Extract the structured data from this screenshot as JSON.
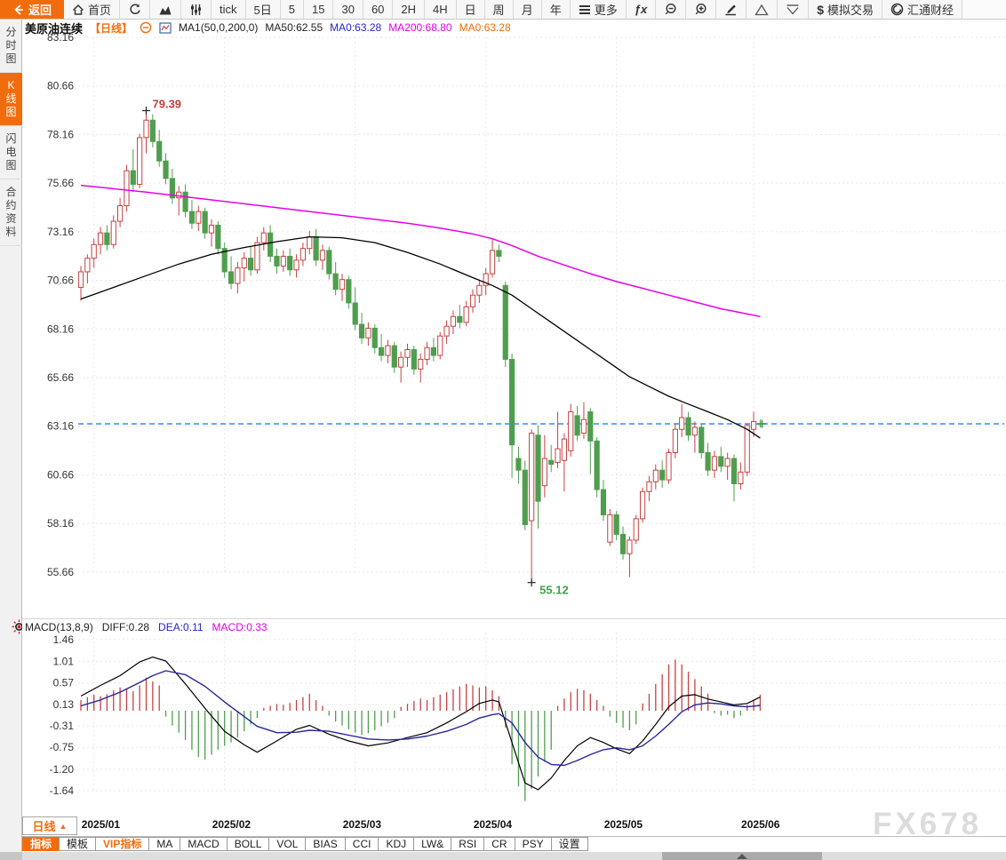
{
  "topbar": {
    "items": [
      {
        "id": "back",
        "label": "返回",
        "icon": "back",
        "primary": true
      },
      {
        "id": "home",
        "label": "首页",
        "icon": "home"
      },
      {
        "id": "refresh",
        "label": "",
        "icon": "refresh"
      },
      {
        "id": "area-chart",
        "label": "",
        "icon": "area-chart"
      },
      {
        "id": "candle-settings",
        "label": "",
        "icon": "sliders"
      },
      {
        "id": "tick",
        "label": "tick"
      },
      {
        "id": "5d",
        "label": "5日"
      },
      {
        "id": "min5",
        "label": "5"
      },
      {
        "id": "min15",
        "label": "15"
      },
      {
        "id": "min30",
        "label": "30"
      },
      {
        "id": "min60",
        "label": "60"
      },
      {
        "id": "h2",
        "label": "2H"
      },
      {
        "id": "h4",
        "label": "4H"
      },
      {
        "id": "day",
        "label": "日"
      },
      {
        "id": "week",
        "label": "周"
      },
      {
        "id": "month",
        "label": "月"
      },
      {
        "id": "year",
        "label": "年"
      },
      {
        "id": "more",
        "label": "更多",
        "icon": "menu"
      },
      {
        "id": "fx-tools",
        "label": "",
        "icon": "fx"
      },
      {
        "id": "zoom-out",
        "label": "",
        "icon": "zoom-out"
      },
      {
        "id": "zoom-in",
        "label": "",
        "icon": "zoom-in"
      },
      {
        "id": "draw",
        "label": "",
        "icon": "pencil"
      },
      {
        "id": "triangle-up",
        "label": "",
        "icon": "triangle-up"
      },
      {
        "id": "triangle-down",
        "label": "",
        "icon": "triangle-down"
      },
      {
        "id": "sim-trade",
        "label": "模拟交易",
        "icon": "dollar"
      },
      {
        "id": "fx678-brand",
        "label": "汇通财经",
        "icon": "brand"
      }
    ]
  },
  "sidebar": {
    "items": [
      {
        "id": "time-share",
        "label": "分时图",
        "active": false
      },
      {
        "id": "kline",
        "label": "K线图",
        "active": true
      },
      {
        "id": "lightning",
        "label": "闪电图",
        "active": false
      },
      {
        "id": "contract-info",
        "label": "合约资料",
        "active": false
      }
    ]
  },
  "chart_header": {
    "title": "美原油连续",
    "period": "【日线】",
    "ma_group": "MA1(50,0,200,0)",
    "ma50": "MA50:62.55",
    "ma0_blue": "MA0:63.28",
    "ma200": "MA200:68.80",
    "ma0_orange": "MA0:63.28"
  },
  "macd_header": {
    "name": "MACD(13,8,9)",
    "diff": "DIFF:0.28",
    "dea": "DEA:0.11",
    "macd": "MACD:0.33"
  },
  "bottom": {
    "period_button": {
      "label": "日线",
      "arrow": "▲"
    },
    "indicator_tabs": [
      {
        "label": "指标",
        "active": true,
        "vip": false
      },
      {
        "label": "模板",
        "active": false,
        "vip": false
      },
      {
        "label": "VIP指标",
        "active": false,
        "vip": true
      },
      {
        "label": "MA",
        "active": false,
        "vip": false
      },
      {
        "label": "MACD",
        "active": false,
        "vip": false
      },
      {
        "label": "BOLL",
        "active": false,
        "vip": false
      },
      {
        "label": "VOL",
        "active": false,
        "vip": false
      },
      {
        "label": "BIAS",
        "active": false,
        "vip": false
      },
      {
        "label": "CCI",
        "active": false,
        "vip": false
      },
      {
        "label": "KDJ",
        "active": false,
        "vip": false
      },
      {
        "label": "LW&",
        "active": false,
        "vip": false
      },
      {
        "label": "RSI",
        "active": false,
        "vip": false
      },
      {
        "label": "CR",
        "active": false,
        "vip": false
      },
      {
        "label": "PSY",
        "active": false,
        "vip": false
      },
      {
        "label": "设置",
        "active": false,
        "vip": false
      }
    ]
  },
  "watermark": "FX678",
  "colors": {
    "accent": "#f26c0d",
    "up": "#c94141",
    "down": "#4f9e4f",
    "ma50": "#000000",
    "ma200": "#e800e8",
    "diff": "#000000",
    "dea": "#26269b",
    "price_line": "#1e80ff",
    "grid": "#e7e7e7",
    "axis_text": "#333333",
    "annotation_high": "#c3403f",
    "annotation_low": "#3fa34d",
    "watermark": "#dcdcdc"
  },
  "chart_data": {
    "type": "candlestick+macd",
    "instrument": "美原油连续",
    "period": "日线",
    "last_price": 63.28,
    "price_ticks": [
      83.16,
      80.66,
      78.16,
      75.66,
      73.16,
      70.66,
      68.16,
      65.66,
      63.16,
      60.66,
      58.16,
      55.66
    ],
    "x_axis": {
      "labels": [
        "2025/01",
        "2025/02",
        "2025/03",
        "2025/04",
        "2025/05",
        "2025/06"
      ],
      "bar_index": [
        2,
        22,
        42,
        62,
        82,
        103
      ]
    },
    "high_annotation": {
      "bar": 10,
      "price": 79.39,
      "label": "79.39"
    },
    "low_annotation": {
      "bar": 69,
      "price": 55.12,
      "label": "55.12"
    },
    "candles": [
      [
        70.3,
        71.4,
        69.6,
        71.1
      ],
      [
        71.1,
        72.0,
        70.5,
        71.8
      ],
      [
        71.8,
        72.8,
        71.3,
        72.5
      ],
      [
        72.5,
        73.4,
        72.0,
        73.1
      ],
      [
        73.1,
        73.5,
        72.2,
        72.5
      ],
      [
        72.5,
        74.0,
        72.3,
        73.7
      ],
      [
        73.7,
        74.9,
        73.4,
        74.5
      ],
      [
        74.5,
        76.6,
        74.2,
        76.3
      ],
      [
        76.3,
        77.4,
        75.2,
        75.6
      ],
      [
        75.6,
        78.2,
        75.4,
        78.0
      ],
      [
        78.0,
        79.39,
        77.2,
        78.9
      ],
      [
        78.9,
        79.2,
        77.5,
        77.8
      ],
      [
        77.8,
        78.4,
        76.5,
        76.8
      ],
      [
        76.8,
        77.2,
        75.6,
        75.9
      ],
      [
        75.9,
        76.4,
        74.6,
        74.9
      ],
      [
        74.9,
        75.5,
        74.0,
        75.2
      ],
      [
        75.2,
        75.6,
        73.9,
        74.2
      ],
      [
        74.2,
        74.8,
        73.3,
        73.6
      ],
      [
        73.6,
        74.5,
        73.2,
        74.2
      ],
      [
        74.2,
        74.4,
        72.8,
        73.1
      ],
      [
        73.1,
        73.8,
        72.4,
        73.5
      ],
      [
        73.5,
        73.7,
        72.0,
        72.3
      ],
      [
        72.3,
        72.6,
        70.8,
        71.1
      ],
      [
        71.1,
        71.9,
        70.2,
        70.5
      ],
      [
        70.5,
        71.6,
        70.0,
        71.3
      ],
      [
        71.3,
        72.1,
        70.6,
        71.8
      ],
      [
        71.8,
        72.4,
        70.9,
        71.2
      ],
      [
        71.2,
        72.9,
        71.0,
        72.6
      ],
      [
        72.6,
        73.4,
        72.2,
        73.1
      ],
      [
        73.1,
        73.5,
        71.6,
        71.9
      ],
      [
        71.9,
        72.3,
        71.0,
        71.4
      ],
      [
        71.4,
        72.2,
        71.1,
        71.9
      ],
      [
        71.9,
        72.3,
        70.9,
        71.2
      ],
      [
        71.2,
        72.0,
        70.8,
        71.7
      ],
      [
        71.7,
        72.6,
        71.4,
        72.3
      ],
      [
        72.3,
        73.2,
        72.0,
        72.9
      ],
      [
        72.9,
        73.3,
        71.4,
        71.7
      ],
      [
        71.7,
        72.5,
        71.2,
        72.2
      ],
      [
        72.2,
        72.4,
        70.7,
        71.0
      ],
      [
        71.0,
        71.6,
        69.9,
        70.2
      ],
      [
        70.2,
        71.0,
        69.6,
        70.7
      ],
      [
        70.7,
        70.9,
        69.2,
        69.5
      ],
      [
        69.5,
        70.3,
        68.1,
        68.4
      ],
      [
        68.4,
        69.0,
        67.4,
        67.7
      ],
      [
        67.7,
        68.5,
        67.3,
        68.2
      ],
      [
        68.2,
        68.4,
        66.9,
        67.2
      ],
      [
        67.2,
        67.9,
        66.5,
        66.8
      ],
      [
        66.8,
        67.6,
        66.4,
        67.3
      ],
      [
        67.3,
        67.5,
        65.9,
        66.2
      ],
      [
        66.2,
        67.0,
        65.4,
        66.7
      ],
      [
        66.7,
        67.4,
        66.2,
        67.1
      ],
      [
        67.1,
        67.3,
        65.8,
        66.1
      ],
      [
        66.1,
        66.9,
        65.4,
        66.6
      ],
      [
        66.6,
        67.5,
        66.3,
        67.2
      ],
      [
        67.2,
        67.7,
        66.5,
        66.8
      ],
      [
        66.8,
        68.0,
        66.6,
        67.8
      ],
      [
        67.8,
        68.6,
        67.4,
        68.3
      ],
      [
        68.3,
        69.1,
        67.9,
        68.8
      ],
      [
        68.8,
        69.4,
        68.2,
        68.5
      ],
      [
        68.5,
        69.6,
        68.3,
        69.3
      ],
      [
        69.3,
        70.2,
        69.0,
        69.9
      ],
      [
        69.9,
        70.7,
        69.5,
        70.4
      ],
      [
        70.4,
        71.3,
        69.9,
        71.0
      ],
      [
        71.0,
        72.8,
        70.8,
        72.2
      ],
      [
        72.2,
        72.5,
        71.6,
        71.9
      ],
      [
        70.4,
        70.6,
        66.2,
        66.6
      ],
      [
        66.6,
        66.9,
        60.5,
        62.2
      ],
      [
        61.5,
        62.1,
        60.2,
        60.9
      ],
      [
        60.9,
        61.4,
        57.8,
        58.1
      ],
      [
        58.3,
        63.0,
        55.12,
        62.8
      ],
      [
        62.7,
        63.2,
        57.9,
        59.3
      ],
      [
        60.1,
        62.7,
        59.5,
        61.5
      ],
      [
        61.4,
        62.2,
        60.8,
        61.2
      ],
      [
        61.3,
        63.9,
        61.0,
        62.0
      ],
      [
        61.4,
        62.8,
        59.8,
        62.5
      ],
      [
        61.9,
        64.3,
        61.6,
        63.9
      ],
      [
        63.7,
        64.2,
        62.4,
        62.7
      ],
      [
        62.8,
        64.4,
        62.5,
        63.5
      ],
      [
        63.9,
        64.1,
        60.7,
        62.4
      ],
      [
        62.4,
        62.6,
        59.5,
        59.9
      ],
      [
        59.9,
        60.4,
        58.3,
        58.6
      ],
      [
        57.2,
        58.9,
        57.0,
        58.6
      ],
      [
        58.6,
        58.8,
        57.3,
        57.6
      ],
      [
        57.6,
        58.0,
        56.3,
        56.6
      ],
      [
        56.6,
        57.5,
        55.4,
        57.3
      ],
      [
        57.3,
        58.6,
        57.1,
        58.4
      ],
      [
        58.4,
        60.0,
        58.2,
        59.8
      ],
      [
        59.8,
        60.6,
        59.3,
        60.3
      ],
      [
        60.3,
        61.2,
        59.9,
        60.9
      ],
      [
        60.9,
        61.4,
        60.0,
        60.4
      ],
      [
        60.4,
        62.0,
        60.2,
        61.8
      ],
      [
        61.8,
        63.3,
        61.5,
        63.0
      ],
      [
        63.0,
        64.3,
        62.6,
        63.6
      ],
      [
        63.6,
        63.9,
        62.4,
        62.7
      ],
      [
        62.7,
        63.4,
        61.8,
        63.1
      ],
      [
        63.1,
        63.3,
        61.5,
        61.8
      ],
      [
        61.8,
        62.3,
        60.6,
        60.9
      ],
      [
        60.9,
        61.9,
        60.5,
        61.6
      ],
      [
        61.6,
        62.1,
        60.8,
        61.1
      ],
      [
        61.1,
        61.8,
        60.4,
        61.5
      ],
      [
        61.5,
        61.7,
        59.3,
        60.2
      ],
      [
        60.2,
        61.3,
        59.9,
        60.8
      ],
      [
        60.8,
        63.3,
        60.6,
        63.2
      ],
      [
        63.0,
        63.9,
        62.6,
        63.4
      ],
      [
        63.3,
        63.5,
        63.1,
        63.28
      ]
    ],
    "ma50": {
      "bars": [
        0,
        5,
        10,
        15,
        20,
        25,
        30,
        35,
        40,
        45,
        50,
        55,
        60,
        63,
        66,
        69,
        72,
        75,
        78,
        81,
        84,
        87,
        90,
        93,
        96,
        99,
        102,
        104
      ],
      "values": [
        69.7,
        70.3,
        70.9,
        71.5,
        72.0,
        72.35,
        72.65,
        72.9,
        72.85,
        72.6,
        72.1,
        71.5,
        70.8,
        70.4,
        69.9,
        69.2,
        68.5,
        67.8,
        67.1,
        66.4,
        65.7,
        65.2,
        64.7,
        64.3,
        63.9,
        63.5,
        63.0,
        62.55
      ]
    },
    "ma200": {
      "bars": [
        0,
        10,
        20,
        30,
        40,
        50,
        55,
        60,
        63,
        66,
        70,
        74,
        78,
        82,
        86,
        90,
        94,
        98,
        101,
        104
      ],
      "values": [
        75.55,
        75.2,
        74.8,
        74.4,
        74.0,
        73.6,
        73.35,
        73.05,
        72.8,
        72.45,
        71.9,
        71.45,
        71.0,
        70.6,
        70.25,
        69.9,
        69.55,
        69.2,
        69.0,
        68.8
      ]
    },
    "macd": {
      "ticks": [
        1.46,
        1.01,
        0.57,
        0.13,
        -0.31,
        -0.75,
        -1.2,
        -1.64
      ],
      "hist": [
        0.22,
        0.28,
        0.33,
        0.3,
        0.34,
        0.42,
        0.48,
        0.44,
        0.4,
        0.52,
        0.68,
        0.6,
        0.52,
        -0.12,
        -0.3,
        -0.45,
        -0.6,
        -0.8,
        -0.95,
        -1.0,
        -0.9,
        -0.8,
        -0.72,
        -0.65,
        -0.55,
        -0.42,
        -0.28,
        -0.15,
        0.06,
        0.1,
        0.14,
        0.12,
        0.16,
        0.22,
        0.28,
        0.35,
        0.22,
        0.1,
        -0.1,
        -0.22,
        -0.3,
        -0.38,
        -0.45,
        -0.5,
        -0.46,
        -0.4,
        -0.32,
        -0.25,
        -0.15,
        0.08,
        0.14,
        0.2,
        0.25,
        0.22,
        0.28,
        0.33,
        0.38,
        0.44,
        0.5,
        0.55,
        0.52,
        0.48,
        0.5,
        0.42,
        0.3,
        -0.35,
        -1.1,
        -1.55,
        -1.85,
        -1.6,
        -1.35,
        -1.05,
        -0.8,
        0.1,
        0.25,
        0.38,
        0.45,
        0.42,
        0.35,
        0.22,
        0.1,
        -0.12,
        -0.25,
        -0.35,
        -0.4,
        -0.28,
        0.15,
        0.35,
        0.55,
        0.75,
        0.95,
        1.05,
        0.95,
        0.8,
        0.65,
        0.5,
        0.35,
        -0.05,
        -0.1,
        -0.08,
        -0.15,
        -0.1,
        0.12,
        0.22,
        0.33
      ],
      "diff": {
        "bars": [
          0,
          3,
          6,
          9,
          11,
          13,
          16,
          19,
          22,
          25,
          27,
          30,
          33,
          35,
          38,
          41,
          44,
          47,
          50,
          53,
          56,
          59,
          61,
          63,
          64,
          66,
          68,
          70,
          72,
          74,
          76,
          78,
          80,
          82,
          84,
          86,
          88,
          90,
          92,
          94,
          96,
          98,
          100,
          102,
          104
        ],
        "values": [
          0.3,
          0.52,
          0.72,
          1.0,
          1.1,
          1.02,
          0.55,
          0.05,
          -0.42,
          -0.7,
          -0.85,
          -0.62,
          -0.38,
          -0.3,
          -0.48,
          -0.62,
          -0.72,
          -0.66,
          -0.55,
          -0.45,
          -0.25,
          -0.02,
          0.15,
          0.22,
          0.18,
          -0.65,
          -1.48,
          -1.62,
          -1.38,
          -1.02,
          -0.72,
          -0.55,
          -0.65,
          -0.78,
          -0.88,
          -0.62,
          -0.28,
          0.08,
          0.3,
          0.33,
          0.24,
          0.18,
          0.12,
          0.15,
          0.28
        ]
      },
      "dea": {
        "bars": [
          0,
          3,
          6,
          9,
          11,
          13,
          16,
          19,
          22,
          25,
          27,
          30,
          33,
          35,
          38,
          41,
          44,
          47,
          50,
          53,
          56,
          59,
          61,
          63,
          64,
          66,
          68,
          70,
          72,
          74,
          76,
          78,
          80,
          82,
          84,
          86,
          88,
          90,
          92,
          94,
          96,
          98,
          100,
          102,
          104
        ],
        "values": [
          0.1,
          0.22,
          0.38,
          0.58,
          0.72,
          0.82,
          0.74,
          0.5,
          0.18,
          -0.12,
          -0.32,
          -0.45,
          -0.44,
          -0.4,
          -0.42,
          -0.5,
          -0.58,
          -0.6,
          -0.58,
          -0.52,
          -0.42,
          -0.28,
          -0.15,
          -0.08,
          -0.06,
          -0.25,
          -0.65,
          -0.95,
          -1.1,
          -1.12,
          -1.02,
          -0.9,
          -0.8,
          -0.76,
          -0.8,
          -0.72,
          -0.52,
          -0.28,
          -0.02,
          0.12,
          0.16,
          0.14,
          0.1,
          0.08,
          0.11
        ]
      }
    }
  }
}
